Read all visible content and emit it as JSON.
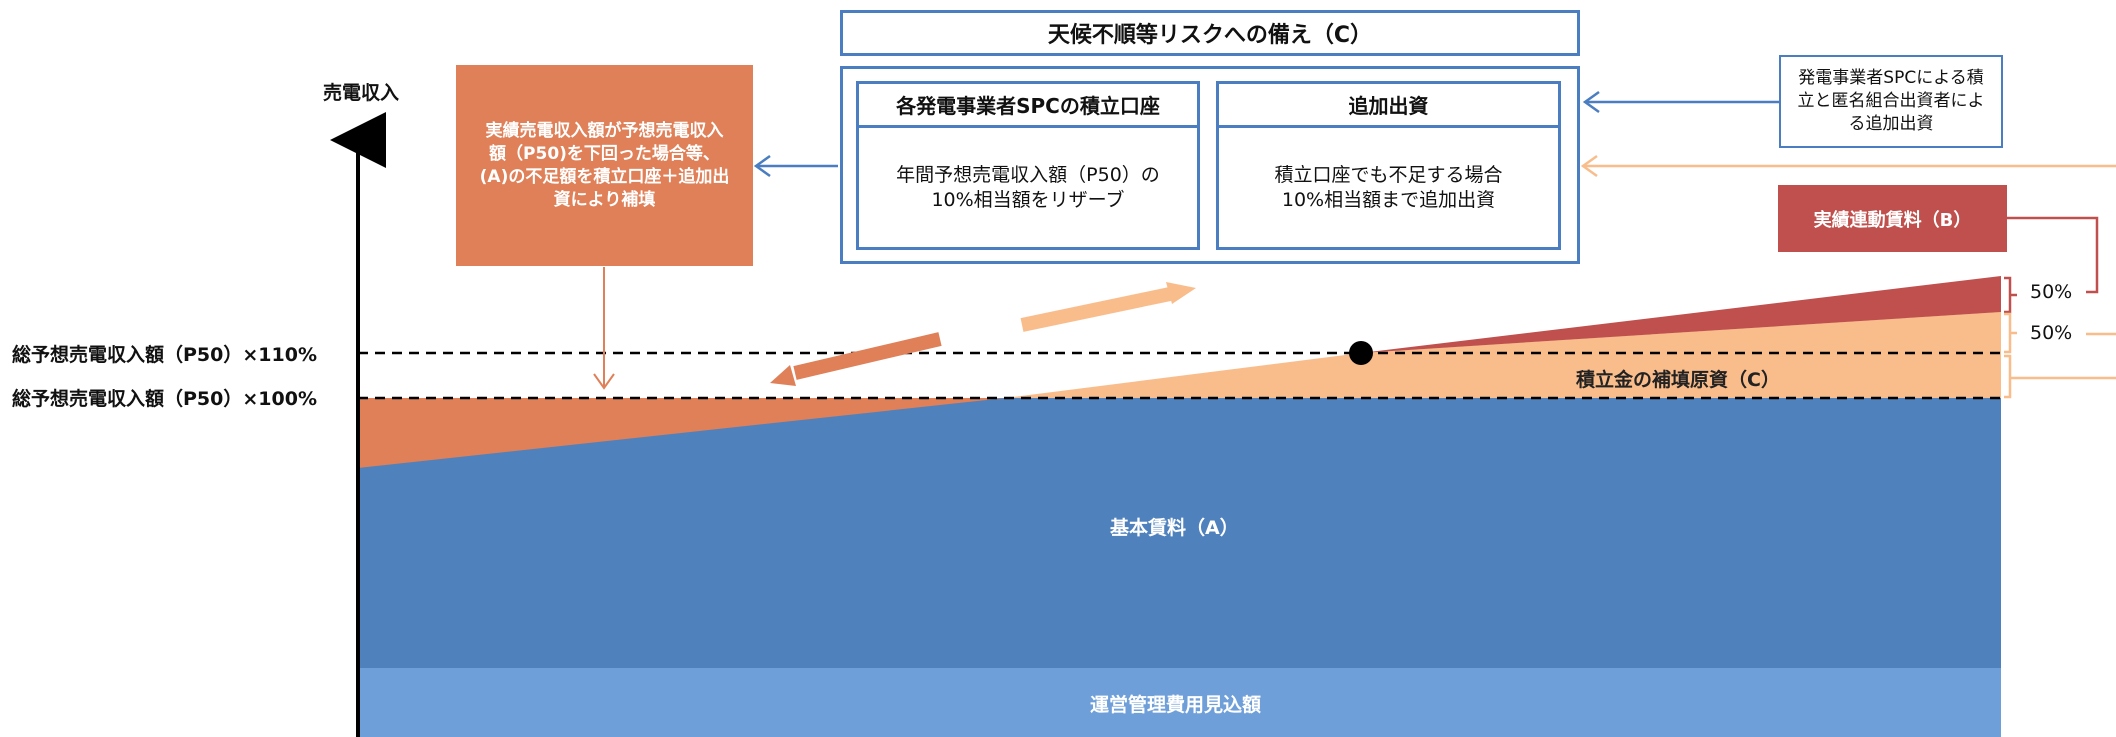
{
  "axis": {
    "y_label": "売電収入",
    "level_110": "総予想売電収入額（P50）×110%",
    "level_100": "総予想売電収入額（P50）×100%"
  },
  "reserve": {
    "title": "天候不順等リスクへの備え（C）",
    "account_title": "各発電事業者SPCの積立口座",
    "account_text_1": "年間予想売電収入額（P50）の",
    "account_text_2": "10%相当額をリザーブ",
    "additional_title": "追加出資",
    "additional_text_1": "積立口座でも不足する場合",
    "additional_text_2": "10%相当額まで追加出資"
  },
  "note": {
    "line1": "発電事業者SPCによる積",
    "line2": "立と匿名組合出資者によ",
    "line3": "る追加出資"
  },
  "shortfall": {
    "line1": "実績売電収入額が予想売電収入",
    "line2": "額（P50)を下回った場合等、",
    "line3": "(A)の不足額を積立口座＋追加出",
    "line4": "資により補填"
  },
  "performance_rent": {
    "label": "実績連動賃料（B）",
    "share": "50%"
  },
  "reserve_share": "50%",
  "bands": {
    "base_rent": "基本賃料（A）",
    "opex": "運営管理費用見込額",
    "reserve_source": "積立金の補填原資（C）"
  },
  "colors": {
    "blue_border": "#4a7ec0",
    "base_rent": "#4f81bd",
    "opex": "#6f9fd8",
    "orange": "#df8058",
    "light_orange": "#f9bd8c",
    "red": "#c0504d"
  }
}
